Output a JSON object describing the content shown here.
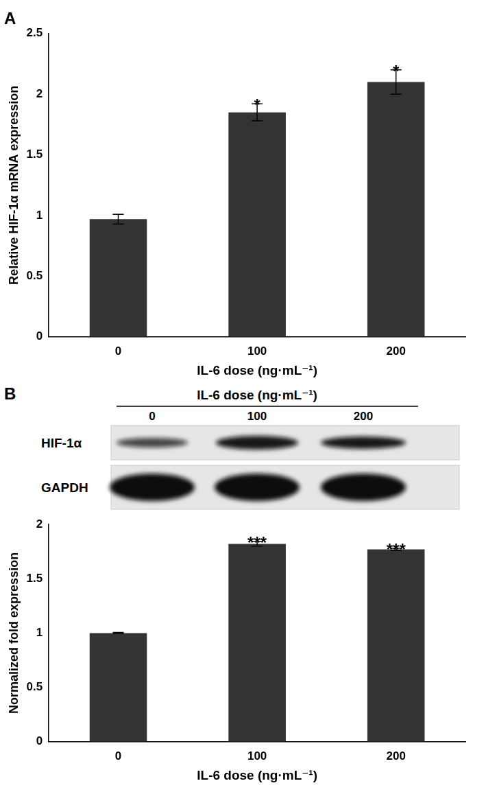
{
  "chart_data": [
    {
      "type": "bar",
      "title": "A",
      "categories": [
        "0",
        "100",
        "200"
      ],
      "values": [
        0.97,
        1.85,
        2.1
      ],
      "errors": [
        0.04,
        0.07,
        0.1
      ],
      "annotations": [
        null,
        "*",
        "*"
      ],
      "color": "#333333",
      "x_label": "IL-6 dose (ng·mL⁻¹)",
      "y_label": "Relative HIF-1α mRNA expression",
      "ylim": [
        0,
        2.5
      ],
      "yticks": [
        0,
        0.5,
        1,
        1.5,
        2,
        2.5
      ],
      "grid": false
    },
    {
      "type": "bar",
      "categories": [
        "0",
        "100",
        "200"
      ],
      "values": [
        1.0,
        1.82,
        1.77
      ],
      "errors": [
        0.005,
        0.02,
        0.01
      ],
      "annotations": [
        null,
        "***",
        "***"
      ],
      "color": "#333333",
      "x_label": "IL-6 dose (ng·mL⁻¹)",
      "y_label": "Normalized fold expression",
      "ylim": [
        0,
        2
      ],
      "yticks": [
        0,
        0.5,
        1,
        1.5,
        2
      ],
      "grid": false
    }
  ],
  "blot": {
    "label": "B",
    "header": "IL-6 dose (ng·mL⁻¹)",
    "lanes": [
      "0",
      "100",
      "200"
    ],
    "rows": [
      "HIF-1α",
      "GAPDH"
    ]
  }
}
